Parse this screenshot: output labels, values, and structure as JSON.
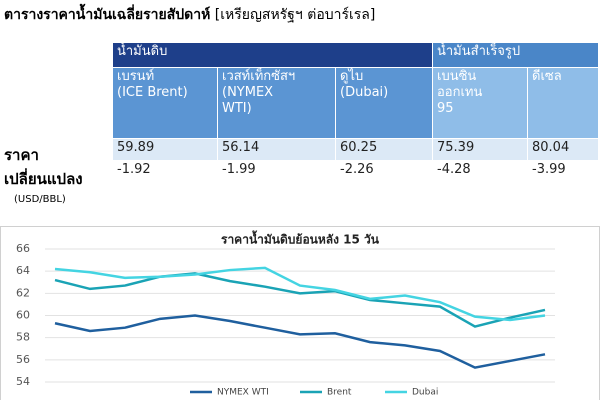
{
  "header": {
    "title": "ตารางราคาน้ำมันเฉลี่ยรายสัปดาห์",
    "unit": "[เหรียญสหรัฐฯ ต่อบาร์เรล]"
  },
  "table": {
    "groups": [
      "น้ำมันดิบ",
      "น้ำมันสำเร็จรูป"
    ],
    "columns": [
      "เบรนท์\n(ICE Brent)",
      "เวสท์เท็กซัสฯ\n(NYMEX\nWTI)",
      "ดูไบ\n(Dubai)",
      "เบนซิน\nออกเทน\n95",
      "ดีเซล"
    ],
    "rows": [
      {
        "label": "ราคา",
        "values": [
          59.89,
          56.14,
          60.25,
          75.39,
          80.04
        ]
      },
      {
        "label": "เปลี่ยนแปลง",
        "values": [
          -1.92,
          -1.99,
          -2.26,
          -4.28,
          -3.99
        ]
      }
    ],
    "unit": "(USD/BBL)"
  },
  "chart_data": {
    "type": "line",
    "title": "ราคาน้ำมันดิบย้อนหลัง 15 วัน",
    "categories": [
      null,
      null,
      null,
      null,
      null,
      null,
      null,
      null,
      null,
      null,
      null,
      null,
      null,
      null,
      null
    ],
    "series": [
      {
        "name": "NYMEX WTI",
        "color": "#1f5f9e",
        "values": [
          59.3,
          58.6,
          58.9,
          59.7,
          60.0,
          59.5,
          58.9,
          58.3,
          58.4,
          57.6,
          57.3,
          56.8,
          55.3,
          55.9,
          56.5
        ]
      },
      {
        "name": "Brent",
        "color": "#1aa3b5",
        "values": [
          63.2,
          62.4,
          62.7,
          63.5,
          63.8,
          63.1,
          62.6,
          62.0,
          62.2,
          61.4,
          61.1,
          60.8,
          59.0,
          59.8,
          60.5
        ]
      },
      {
        "name": "Dubai",
        "color": "#44d4e2",
        "values": [
          64.2,
          63.9,
          63.4,
          63.5,
          63.7,
          64.1,
          64.3,
          62.7,
          62.3,
          61.5,
          61.8,
          61.2,
          59.9,
          59.6,
          60.0
        ]
      }
    ],
    "ylim": [
      54,
      66
    ],
    "yticks": [
      54,
      56,
      58,
      60,
      62,
      64,
      66
    ],
    "grid": true
  }
}
